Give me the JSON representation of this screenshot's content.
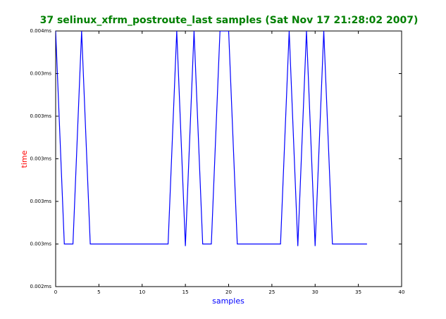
{
  "chart_data": {
    "type": "line",
    "title": "37 selinux_xfrm_postroute_last samples (Sat Nov 17 21:28:02 2007)",
    "xlabel": "samples",
    "ylabel": "time",
    "x": [
      0,
      1,
      2,
      3,
      4,
      5,
      6,
      7,
      8,
      9,
      10,
      11,
      12,
      13,
      14,
      15,
      16,
      17,
      18,
      19,
      20,
      21,
      22,
      23,
      24,
      25,
      26,
      27,
      28,
      29,
      30,
      31,
      32,
      33,
      34,
      35,
      36
    ],
    "series": [
      {
        "color": "#0000ff",
        "values": [
          0.0036,
          0.0026,
          0.0026,
          0.0036,
          0.0026,
          0.0026,
          0.0026,
          0.0026,
          0.0026,
          0.0026,
          0.0026,
          0.0026,
          0.0026,
          0.0026,
          0.0036,
          0.00259,
          0.0036,
          0.0026,
          0.0026,
          0.0036,
          0.0036,
          0.0026,
          0.0026,
          0.0026,
          0.0026,
          0.0026,
          0.0026,
          0.0036,
          0.00259,
          0.0036,
          0.00259,
          0.0036,
          0.0026,
          0.0026,
          0.0026,
          0.0026,
          0.0026
        ]
      }
    ],
    "xlim": [
      0,
      40
    ],
    "xticks": [
      0,
      5,
      10,
      15,
      20,
      25,
      30,
      35,
      40
    ],
    "ylim": [
      0.0024,
      0.0036
    ],
    "yticks": [
      {
        "value": 0.0024,
        "label": "0.002ms"
      },
      {
        "value": 0.0026,
        "label": "0.003ms"
      },
      {
        "value": 0.0028,
        "label": "0.003ms"
      },
      {
        "value": 0.003,
        "label": "0.003ms"
      },
      {
        "value": 0.0032,
        "label": "0.003ms"
      },
      {
        "value": 0.0034,
        "label": "0.003ms"
      },
      {
        "value": 0.0036,
        "label": "0.004ms"
      }
    ],
    "title_color": "#008000",
    "xlabel_color": "#0000ff",
    "ylabel_color": "#ff0000"
  }
}
